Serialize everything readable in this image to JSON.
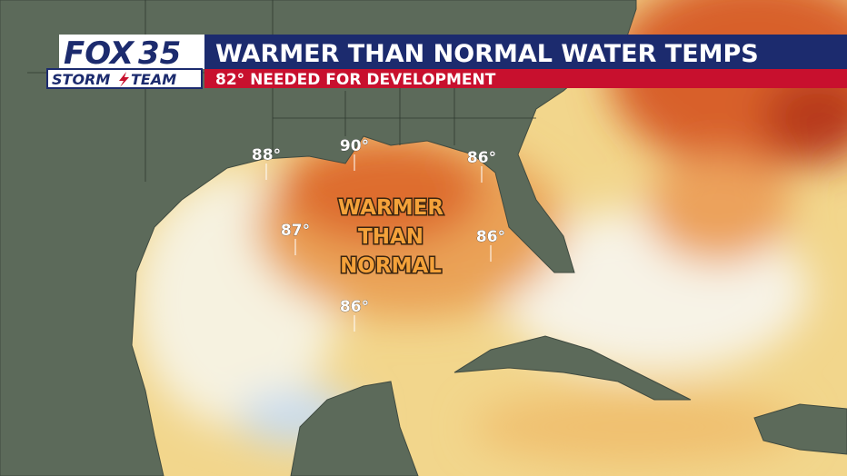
{
  "logo": {
    "brand": "FOX",
    "channel": "35",
    "team_left": "STORM",
    "team_right": "TEAM"
  },
  "header": {
    "title": "WARMER THAN NORMAL WATER TEMPS",
    "subtitle": "82° NEEDED FOR DEVELOPMENT"
  },
  "temperatures": [
    "88°",
    "90°",
    "86°",
    "87°",
    "86°",
    "86°"
  ],
  "annotation": [
    "WARMER",
    "THAN",
    "NORMAL"
  ]
}
